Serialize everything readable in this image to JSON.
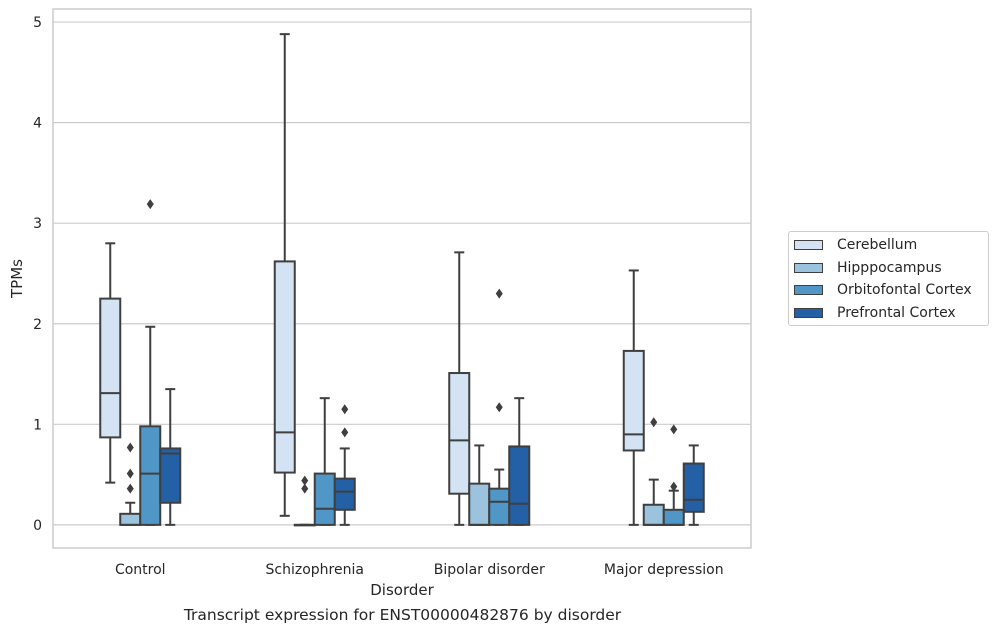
{
  "chart_data": {
    "type": "box",
    "xlabel": "Disorder",
    "ylabel": "TPMs",
    "ylim": [
      -0.23,
      5.13
    ],
    "yticks": [
      0,
      1,
      2,
      3,
      4,
      5
    ],
    "grid": true,
    "legend_position": "right",
    "categories": [
      "Control",
      "Schizophrenia",
      "Bipolar disorder",
      "Major depression"
    ],
    "series": [
      {
        "name": "Cerebellum",
        "color": "#d3e3f3",
        "boxes": [
          {
            "whislo": 0.42,
            "q1": 0.87,
            "med": 1.31,
            "q3": 2.25,
            "whishi": 2.8,
            "fliers": []
          },
          {
            "whislo": 0.09,
            "q1": 0.52,
            "med": 0.92,
            "q3": 2.62,
            "whishi": 4.88,
            "fliers": []
          },
          {
            "whislo": 0.0,
            "q1": 0.31,
            "med": 0.84,
            "q3": 1.51,
            "whishi": 2.71,
            "fliers": []
          },
          {
            "whislo": 0.0,
            "q1": 0.74,
            "med": 0.9,
            "q3": 1.73,
            "whishi": 2.53,
            "fliers": []
          }
        ]
      },
      {
        "name": "Hipppocampus",
        "color": "#9cc3de",
        "boxes": [
          {
            "whislo": 0.0,
            "q1": 0.0,
            "med": 0.0,
            "q3": 0.11,
            "whishi": 0.22,
            "fliers": [
              0.36,
              0.51,
              0.77
            ]
          },
          {
            "whislo": 0.0,
            "q1": 0.0,
            "med": 0.0,
            "q3": 0.0,
            "whishi": 0.0,
            "fliers": [
              0.36,
              0.44
            ]
          },
          {
            "whislo": 0.0,
            "q1": 0.0,
            "med": 0.0,
            "q3": 0.41,
            "whishi": 0.79,
            "fliers": []
          },
          {
            "whislo": 0.0,
            "q1": 0.0,
            "med": 0.0,
            "q3": 0.2,
            "whishi": 0.45,
            "fliers": [
              1.02
            ]
          }
        ]
      },
      {
        "name": "Orbitofontal Cortex",
        "color": "#5097c8",
        "boxes": [
          {
            "whislo": 0.0,
            "q1": 0.0,
            "med": 0.51,
            "q3": 0.98,
            "whishi": 1.97,
            "fliers": [
              3.19
            ]
          },
          {
            "whislo": 0.0,
            "q1": 0.0,
            "med": 0.16,
            "q3": 0.51,
            "whishi": 1.26,
            "fliers": []
          },
          {
            "whislo": 0.0,
            "q1": 0.0,
            "med": 0.23,
            "q3": 0.36,
            "whishi": 0.55,
            "fliers": [
              1.17,
              2.3
            ]
          },
          {
            "whislo": 0.0,
            "q1": 0.0,
            "med": 0.0,
            "q3": 0.15,
            "whishi": 0.34,
            "fliers": [
              0.38,
              0.95
            ]
          }
        ]
      },
      {
        "name": "Prefrontal Cortex",
        "color": "#2460a6",
        "boxes": [
          {
            "whislo": 0.0,
            "q1": 0.22,
            "med": 0.71,
            "q3": 0.76,
            "whishi": 1.35,
            "fliers": []
          },
          {
            "whislo": 0.0,
            "q1": 0.15,
            "med": 0.33,
            "q3": 0.46,
            "whishi": 0.76,
            "fliers": [
              0.92,
              1.15
            ]
          },
          {
            "whislo": 0.0,
            "q1": 0.0,
            "med": 0.21,
            "q3": 0.78,
            "whishi": 1.26,
            "fliers": []
          },
          {
            "whislo": 0.0,
            "q1": 0.13,
            "med": 0.25,
            "q3": 0.61,
            "whishi": 0.79,
            "fliers": []
          }
        ]
      }
    ]
  },
  "caption": "Transcript expression for ENST00000482876 by disorder"
}
